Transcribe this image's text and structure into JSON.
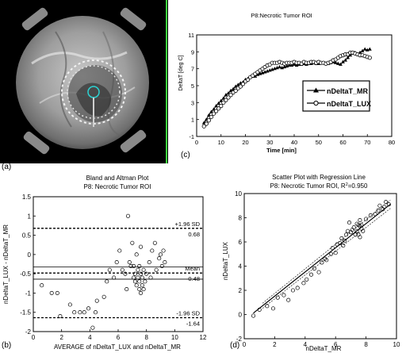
{
  "panel_labels": {
    "a": "(a)",
    "b": "(b)",
    "c": "(c)",
    "d": "(d)"
  },
  "mr_image": {
    "caption": ""
  },
  "chart_data": [
    {
      "id": "c",
      "type": "line",
      "title": "P8:Necrotic Tumor ROI",
      "xlabel": "Time [min]",
      "ylabel": "DeltaT [deg C]",
      "xlim": [
        0,
        80
      ],
      "ylim": [
        -1,
        11
      ],
      "xticks": [
        0,
        10,
        20,
        30,
        40,
        50,
        60,
        70,
        80
      ],
      "yticks": [
        -1,
        1,
        3,
        5,
        7,
        9,
        11
      ],
      "legend": "center-right",
      "series": [
        {
          "name": "nDeltaT_MR",
          "marker": "triangle",
          "x": [
            3,
            4,
            5,
            6,
            7,
            8,
            9,
            10,
            11,
            12,
            13,
            14,
            15,
            16,
            17,
            18,
            19,
            20,
            21,
            22,
            23,
            24,
            25,
            26,
            27,
            28,
            29,
            30,
            31,
            32,
            33,
            34,
            35,
            36,
            37,
            38,
            39,
            40,
            41,
            42,
            43,
            44,
            45,
            46,
            47,
            48,
            49,
            50,
            51,
            52,
            53,
            54,
            55,
            56,
            57,
            58,
            59,
            60,
            61,
            62,
            63,
            64,
            65,
            66,
            67,
            68,
            69,
            70,
            71
          ],
          "y": [
            0.6,
            1.0,
            1.5,
            1.9,
            2.2,
            2.6,
            2.9,
            3.2,
            3.5,
            3.9,
            4.1,
            4.4,
            4.6,
            4.9,
            5.1,
            5.3,
            5.4,
            5.7,
            5.8,
            6.0,
            6.1,
            6.1,
            6.3,
            6.4,
            6.5,
            6.6,
            6.7,
            6.8,
            6.9,
            7.0,
            7.1,
            7.2,
            7.1,
            7.2,
            7.3,
            7.4,
            7.4,
            7.5,
            7.4,
            7.5,
            7.5,
            7.6,
            7.5,
            7.6,
            7.6,
            7.7,
            7.6,
            7.6,
            7.7,
            7.7,
            7.6,
            7.6,
            7.7,
            7.8,
            7.7,
            7.6,
            7.5,
            7.8,
            8.0,
            8.3,
            8.6,
            8.8,
            8.9,
            8.7,
            8.9,
            9.1,
            9.3,
            9.2,
            9.3
          ]
        },
        {
          "name": "nDeltaT_LUX",
          "marker": "circle",
          "x": [
            3,
            4,
            5,
            6,
            7,
            8,
            9,
            10,
            11,
            12,
            13,
            14,
            15,
            16,
            17,
            18,
            19,
            20,
            21,
            22,
            23,
            24,
            25,
            26,
            27,
            28,
            29,
            30,
            31,
            32,
            33,
            34,
            35,
            36,
            37,
            38,
            39,
            40,
            41,
            42,
            43,
            44,
            45,
            46,
            47,
            48,
            49,
            50,
            51,
            52,
            53,
            54,
            55,
            56,
            57,
            58,
            59,
            60,
            61,
            62,
            63,
            64,
            65,
            66,
            67,
            68,
            69,
            70,
            71
          ],
          "y": [
            0.2,
            0.5,
            0.9,
            1.3,
            1.7,
            2.0,
            2.3,
            2.6,
            3.0,
            3.3,
            3.6,
            3.9,
            4.2,
            4.4,
            4.7,
            4.9,
            5.2,
            5.5,
            5.7,
            6.0,
            6.2,
            6.4,
            6.6,
            6.8,
            7.0,
            7.2,
            7.4,
            7.5,
            7.7,
            7.7,
            7.7,
            7.8,
            7.7,
            7.6,
            7.7,
            7.7,
            7.7,
            7.8,
            7.7,
            7.7,
            7.6,
            7.8,
            7.7,
            7.7,
            7.8,
            7.8,
            7.7,
            7.8,
            7.7,
            7.7,
            7.6,
            7.7,
            7.8,
            8.0,
            8.1,
            8.3,
            8.5,
            8.6,
            8.7,
            8.7,
            8.9,
            8.9,
            8.8,
            8.7,
            8.6,
            8.6,
            8.5,
            8.4,
            8.3
          ]
        }
      ]
    },
    {
      "id": "b",
      "type": "scatter",
      "title": "Bland and Altman Plot",
      "subtitle": "P8: Necrotic Tumor ROI",
      "xlabel": "AVERAGE of nDeltaT_LUX and nDeltaT_MR",
      "ylabel": "nDeltaT_LUX - nDeltaT_MR",
      "xlim": [
        0,
        12
      ],
      "ylim": [
        -2,
        1.5
      ],
      "xticks": [
        0,
        2,
        4,
        6,
        8,
        10,
        12
      ],
      "yticks": [
        -2,
        -1.5,
        -1,
        -0.5,
        0,
        0.5,
        1,
        1.5
      ],
      "reference_lines": [
        {
          "y": 0.68,
          "style": "dashed",
          "label": "+1.96 SD",
          "value_label": "0.68"
        },
        {
          "y": -0.32,
          "style": "solid",
          "label": "",
          "value_label": ""
        },
        {
          "y": -0.48,
          "style": "dashed",
          "label": "Mean",
          "value_label": "-0.48"
        },
        {
          "y": -0.64,
          "style": "solid",
          "label": "",
          "value_label": ""
        },
        {
          "y": -1.64,
          "style": "dashed",
          "label": "-1.96 SD",
          "value_label": "-1.64"
        }
      ],
      "points": {
        "x": [
          0.6,
          1.3,
          1.7,
          1.9,
          2.6,
          2.9,
          3.3,
          3.6,
          3.9,
          4.2,
          4.4,
          4.5,
          5.0,
          5.2,
          5.4,
          5.7,
          5.9,
          6.1,
          6.3,
          6.5,
          6.6,
          6.7,
          6.8,
          6.9,
          7.0,
          7.1,
          7.1,
          7.2,
          7.2,
          7.3,
          7.3,
          7.4,
          7.4,
          7.5,
          7.5,
          7.5,
          7.6,
          7.6,
          7.7,
          7.7,
          7.8,
          7.9,
          8.0,
          8.2,
          8.3,
          8.4,
          8.6,
          8.7,
          8.9,
          9.0,
          9.1,
          9.2,
          9.3,
          7.6,
          7.8
        ],
        "y": [
          -0.8,
          -1.0,
          -1.0,
          -1.6,
          -1.3,
          -1.5,
          -1.5,
          -1.5,
          -1.4,
          -1.9,
          -1.5,
          -1.2,
          -1.1,
          -0.7,
          -0.4,
          -0.6,
          -0.2,
          0.1,
          -0.4,
          -0.5,
          -0.9,
          1.0,
          -0.2,
          -0.3,
          0.3,
          -0.6,
          -0.3,
          -0.7,
          -0.5,
          0.0,
          -0.8,
          -0.6,
          -0.4,
          -0.9,
          -0.3,
          -0.7,
          0.2,
          -0.5,
          -0.6,
          -0.8,
          -0.4,
          -0.7,
          -0.5,
          -0.2,
          -0.6,
          0.1,
          0.3,
          -0.4,
          -0.1,
          0.0,
          -0.3,
          0.1,
          -0.2,
          -1.0,
          -0.9
        ]
      }
    },
    {
      "id": "d",
      "type": "scatter",
      "title": "Scatter Plot with Regression Line",
      "subtitle_prefix": "P8: Necrotic Tumor ROI, R",
      "subtitle_sup": "2",
      "subtitle_suffix": "=0.950",
      "xlabel": "nDeltaT_MR",
      "ylabel": "nDeltaT_LUX",
      "xlim": [
        0,
        10
      ],
      "ylim": [
        -2,
        10
      ],
      "xticks": [
        0,
        2,
        4,
        6,
        8,
        10
      ],
      "yticks": [
        -2,
        0,
        2,
        4,
        6,
        8,
        10
      ],
      "regression": {
        "slope": 1.0,
        "intercept": -0.48,
        "x_range": [
          0.6,
          9.6
        ],
        "ci_offset": 0.35
      },
      "points": {
        "x": [
          0.6,
          1.0,
          1.5,
          1.9,
          2.2,
          2.6,
          2.9,
          3.2,
          3.5,
          3.9,
          4.1,
          4.4,
          4.6,
          4.9,
          5.1,
          5.3,
          5.4,
          5.7,
          5.8,
          6.0,
          6.1,
          6.3,
          6.4,
          6.5,
          6.6,
          6.7,
          6.8,
          6.9,
          7.0,
          7.1,
          7.2,
          7.3,
          7.4,
          7.5,
          7.6,
          7.7,
          7.8,
          8.0,
          8.3,
          8.6,
          8.8,
          8.9,
          9.1,
          9.2,
          9.3,
          9.5,
          7.5,
          7.6,
          7.7,
          7.4,
          7.6
        ],
        "y": [
          -0.1,
          0.4,
          0.7,
          0.5,
          1.4,
          1.6,
          1.2,
          2.0,
          2.2,
          2.6,
          2.9,
          3.3,
          3.8,
          3.5,
          4.3,
          4.6,
          4.5,
          5.0,
          5.5,
          5.1,
          5.8,
          5.9,
          6.3,
          5.7,
          6.1,
          6.6,
          6.9,
          7.6,
          6.8,
          7.0,
          7.2,
          6.6,
          7.5,
          7.4,
          7.3,
          7.1,
          6.9,
          7.9,
          8.2,
          8.3,
          8.6,
          9.0,
          8.7,
          8.9,
          9.3,
          9.1,
          6.6,
          7.8,
          7.4,
          6.9,
          6.4
        ]
      }
    }
  ]
}
